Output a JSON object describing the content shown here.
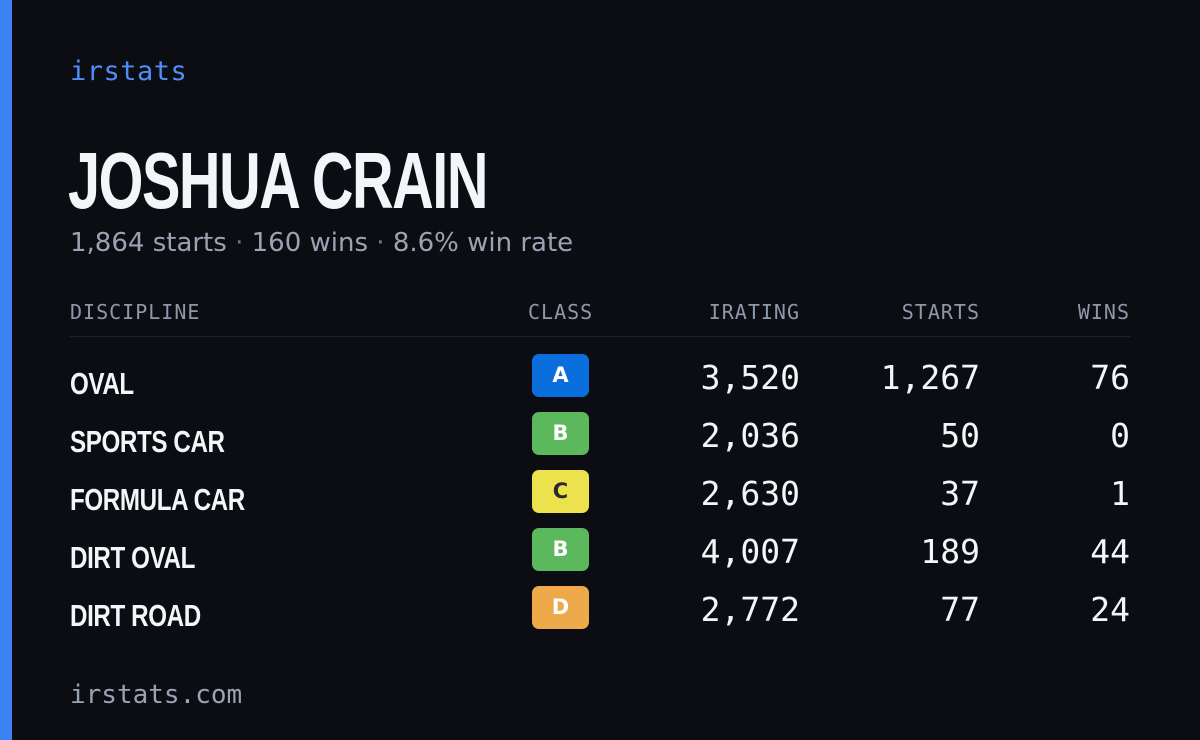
{
  "brand": "irstats",
  "driver": {
    "name": "JOSHUA CRAIN",
    "stats": {
      "starts": "1,864 starts",
      "wins": "160 wins",
      "win_rate": "8.6% win rate",
      "separator": "·"
    }
  },
  "table": {
    "headers": {
      "discipline": "DISCIPLINE",
      "class": "CLASS",
      "irating": "IRATING",
      "starts": "STARTS",
      "wins": "WINS"
    },
    "rows": [
      {
        "discipline": "OVAL",
        "class": "A",
        "irating": "3,520",
        "starts": "1,267",
        "wins": "76"
      },
      {
        "discipline": "SPORTS CAR",
        "class": "B",
        "irating": "2,036",
        "starts": "50",
        "wins": "0"
      },
      {
        "discipline": "FORMULA CAR",
        "class": "C",
        "irating": "2,630",
        "starts": "37",
        "wins": "1"
      },
      {
        "discipline": "DIRT OVAL",
        "class": "B",
        "irating": "4,007",
        "starts": "189",
        "wins": "44"
      },
      {
        "discipline": "DIRT ROAD",
        "class": "D",
        "irating": "2,772",
        "starts": "77",
        "wins": "24"
      }
    ]
  },
  "class_colors": {
    "A": {
      "bg": "#0a6fdc",
      "fg": "#ffffff"
    },
    "B": {
      "bg": "#5bb85c",
      "fg": "#ffffff"
    },
    "C": {
      "bg": "#ece24e",
      "fg": "#2a2a2a"
    },
    "D": {
      "bg": "#eea94a",
      "fg": "#ffffff"
    }
  },
  "colors": {
    "accent": "#3b82f6",
    "background": "#0b0d13"
  },
  "footer": "irstats.com"
}
